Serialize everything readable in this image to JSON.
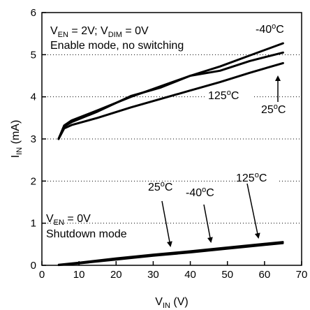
{
  "chart_data": {
    "type": "line",
    "xlabel": {
      "main": "V",
      "sub": "IN",
      "unit": " (V)"
    },
    "ylabel": {
      "main": "I",
      "sub": "IN",
      "unit": " (mA)"
    },
    "xlim": [
      0,
      70
    ],
    "ylim": [
      0,
      6
    ],
    "xticks": [
      0,
      10,
      20,
      30,
      40,
      50,
      60,
      70
    ],
    "yticks": [
      0,
      1,
      2,
      3,
      4,
      5,
      6
    ],
    "grid": "horizontal-dashed",
    "series": [
      {
        "name": "-40",
        "group": "enable",
        "x": [
          4.5,
          6,
          8,
          15,
          24,
          32,
          40,
          48,
          56,
          65
        ],
        "y": [
          3.0,
          3.32,
          3.44,
          3.68,
          4.0,
          4.25,
          4.5,
          4.72,
          4.98,
          5.27
        ]
      },
      {
        "name": "25",
        "group": "enable",
        "x": [
          4.5,
          6,
          8,
          15,
          24,
          32,
          40,
          48,
          56,
          65
        ],
        "y": [
          3.0,
          3.3,
          3.4,
          3.65,
          4.02,
          4.22,
          4.5,
          4.62,
          4.85,
          5.05
        ]
      },
      {
        "name": "125",
        "group": "enable",
        "x": [
          4.5,
          6,
          8,
          15,
          24,
          32,
          40,
          48,
          56,
          65
        ],
        "y": [
          3.0,
          3.25,
          3.33,
          3.5,
          3.75,
          3.95,
          4.15,
          4.35,
          4.57,
          4.8
        ]
      },
      {
        "name": "shutdown-125",
        "group": "shutdown",
        "x": [
          4.5,
          10,
          20,
          30,
          40,
          50,
          65
        ],
        "y": [
          0.02,
          0.07,
          0.17,
          0.26,
          0.34,
          0.43,
          0.56
        ]
      },
      {
        "name": "shutdown-25",
        "group": "shutdown",
        "x": [
          4.5,
          10,
          20,
          30,
          40,
          50,
          65
        ],
        "y": [
          0.01,
          0.05,
          0.15,
          0.24,
          0.32,
          0.41,
          0.54
        ]
      },
      {
        "name": "shutdown-m40",
        "group": "shutdown",
        "x": [
          4.5,
          10,
          20,
          30,
          40,
          50,
          65
        ],
        "y": [
          0.0,
          0.04,
          0.13,
          0.22,
          0.3,
          0.39,
          0.52
        ]
      }
    ],
    "annotations": {
      "enable_cond": {
        "line1": {
          "v1": "V",
          "s1": "EN",
          "t1": " = 2V; V",
          "s2": "DIM",
          "t2": " = 0V"
        },
        "line2": "Enable mode, no switching"
      },
      "shutdown_cond": {
        "line1": {
          "v": "V",
          "s": "EN",
          "t": " = 0V"
        },
        "line2": "Shutdown mode"
      },
      "temp_labels": [
        {
          "num": "-40",
          "deg": "o",
          "unit": "C"
        },
        {
          "num": "125",
          "deg": "o",
          "unit": "C"
        },
        {
          "num": "25",
          "deg": "o",
          "unit": "C"
        },
        {
          "num": "25",
          "deg": "o",
          "unit": "C"
        },
        {
          "num": "-40",
          "deg": "o",
          "unit": "C"
        },
        {
          "num": "125",
          "deg": "o",
          "unit": "C"
        }
      ]
    }
  }
}
